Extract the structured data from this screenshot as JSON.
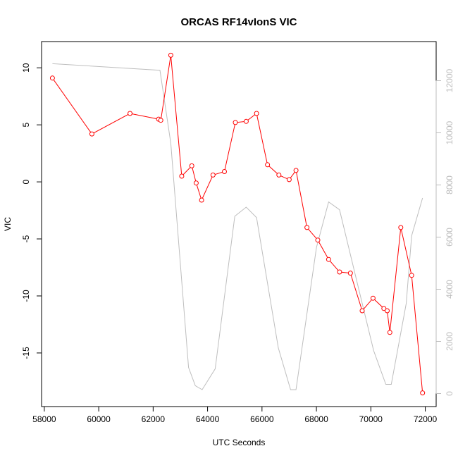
{
  "chart_data": {
    "type": "line",
    "title": "ORCAS RF14vIonS VIC",
    "xlabel": "UTC Seconds",
    "ylabel": "VIC",
    "xlim": [
      57900,
      72400
    ],
    "ylim": [
      -19.7,
      12.3
    ],
    "y2lim": [
      -500,
      13500
    ],
    "x_ticks": [
      58000,
      60000,
      62000,
      64000,
      66000,
      68000,
      70000,
      72000
    ],
    "y_ticks": [
      10,
      5,
      0,
      -5,
      -10,
      -15
    ],
    "y2_ticks": [
      0,
      2000,
      4000,
      6000,
      8000,
      10000,
      12000
    ],
    "colors": {
      "vic": "#ff0000",
      "secondary": "#bebebe",
      "axis": "#000000",
      "axis_right": "#bdbdbd"
    },
    "series": [
      {
        "axis": "left",
        "style": "line+circles",
        "points": [
          [
            58300,
            9.1
          ],
          [
            59750,
            4.2
          ],
          [
            61150,
            6.0
          ],
          [
            62200,
            5.5
          ],
          [
            62280,
            5.4
          ],
          [
            62650,
            11.1
          ],
          [
            63050,
            0.5
          ],
          [
            63420,
            1.4
          ],
          [
            63580,
            -0.1
          ],
          [
            63780,
            -1.6
          ],
          [
            64200,
            0.6
          ],
          [
            64620,
            0.9
          ],
          [
            65020,
            5.2
          ],
          [
            65420,
            5.3
          ],
          [
            65800,
            6.0
          ],
          [
            66200,
            1.5
          ],
          [
            66620,
            0.6
          ],
          [
            67000,
            0.2
          ],
          [
            67250,
            1.0
          ],
          [
            67650,
            -4.0
          ],
          [
            68050,
            -5.1
          ],
          [
            68450,
            -6.8
          ],
          [
            68850,
            -7.9
          ],
          [
            69250,
            -8.0
          ],
          [
            69680,
            -11.3
          ],
          [
            70080,
            -10.2
          ],
          [
            70480,
            -11.1
          ],
          [
            70600,
            -11.3
          ],
          [
            70700,
            -13.2
          ],
          [
            71100,
            -4.0
          ],
          [
            71500,
            -8.2
          ],
          [
            71900,
            -18.5
          ]
        ]
      },
      {
        "axis": "right",
        "style": "line",
        "points": [
          [
            58300,
            12650
          ],
          [
            62250,
            12400
          ],
          [
            62650,
            9600
          ],
          [
            63300,
            1000
          ],
          [
            63550,
            300
          ],
          [
            63800,
            150
          ],
          [
            64280,
            950
          ],
          [
            65000,
            6800
          ],
          [
            65420,
            7150
          ],
          [
            65800,
            6750
          ],
          [
            66600,
            1750
          ],
          [
            67050,
            150
          ],
          [
            67250,
            150
          ],
          [
            68000,
            5600
          ],
          [
            68450,
            7350
          ],
          [
            68850,
            7050
          ],
          [
            70100,
            1650
          ],
          [
            70550,
            350
          ],
          [
            70750,
            350
          ],
          [
            71300,
            3450
          ],
          [
            71500,
            6050
          ],
          [
            71900,
            7500
          ]
        ]
      }
    ]
  }
}
